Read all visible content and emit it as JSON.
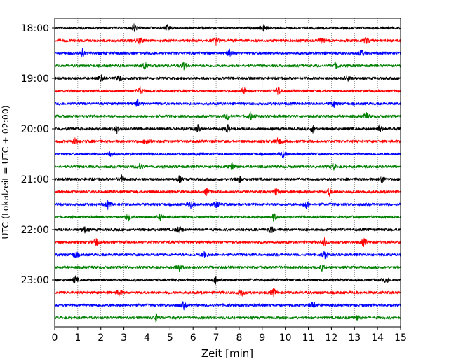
{
  "chart_data": {
    "type": "line",
    "title": "",
    "xlabel": "Zeit  [min]",
    "ylabel": "UTC (Lokalzeit = UTC + 02:00)",
    "xlim": [
      0,
      15
    ],
    "x_ticks": [
      "0",
      "1",
      "2",
      "3",
      "4",
      "5",
      "6",
      "7",
      "8",
      "9",
      "10",
      "11",
      "12",
      "13",
      "14",
      "15"
    ],
    "y_tick_labels": [
      "18:00",
      "19:00",
      "20:00",
      "21:00",
      "22:00",
      "23:00"
    ],
    "grid": "vertical dotted",
    "colors": [
      "#000000",
      "#ff0000",
      "#0000ff",
      "#008000"
    ],
    "traces": [
      {
        "start": "18:00",
        "color": "#000000",
        "events": [
          3.45,
          4.9,
          9.05
        ]
      },
      {
        "start": "18:15",
        "color": "#ff0000",
        "events": [
          3.7,
          7.0,
          11.6,
          13.5
        ]
      },
      {
        "start": "18:30",
        "color": "#0000ff",
        "events": [
          1.2,
          7.6,
          13.3
        ]
      },
      {
        "start": "18:45",
        "color": "#008000",
        "events": [
          3.9,
          5.6,
          12.2
        ]
      },
      {
        "start": "19:00",
        "color": "#000000",
        "events": [
          2.0,
          2.8,
          12.7
        ]
      },
      {
        "start": "19:15",
        "color": "#ff0000",
        "events": [
          3.7,
          8.2,
          9.7
        ]
      },
      {
        "start": "19:30",
        "color": "#0000ff",
        "events": [
          3.6,
          12.1
        ]
      },
      {
        "start": "19:45",
        "color": "#008000",
        "events": [
          7.5,
          8.5,
          13.5
        ]
      },
      {
        "start": "20:00",
        "color": "#000000",
        "events": [
          2.7,
          6.2,
          7.5,
          11.2,
          14.1
        ]
      },
      {
        "start": "20:15",
        "color": "#ff0000",
        "events": [
          0.9,
          4.0,
          9.7
        ]
      },
      {
        "start": "20:30",
        "color": "#0000ff",
        "events": [
          2.4,
          9.9
        ]
      },
      {
        "start": "20:45",
        "color": "#008000",
        "events": [
          3.7,
          7.7,
          12.1
        ]
      },
      {
        "start": "21:00",
        "color": "#000000",
        "events": [
          2.9,
          5.4,
          8.0,
          14.2
        ]
      },
      {
        "start": "21:15",
        "color": "#ff0000",
        "events": [
          6.6,
          9.6,
          11.9
        ]
      },
      {
        "start": "21:30",
        "color": "#0000ff",
        "events": [
          2.3,
          5.9,
          7.0,
          10.9
        ]
      },
      {
        "start": "21:45",
        "color": "#008000",
        "events": [
          3.2,
          4.6,
          9.5
        ]
      },
      {
        "start": "22:00",
        "color": "#000000",
        "events": [
          1.3,
          5.4,
          9.4
        ]
      },
      {
        "start": "22:15",
        "color": "#ff0000",
        "events": [
          1.8,
          11.7,
          13.4
        ]
      },
      {
        "start": "22:30",
        "color": "#0000ff",
        "events": [
          0.9,
          6.5,
          11.7
        ]
      },
      {
        "start": "22:45",
        "color": "#008000",
        "events": [
          5.4,
          11.6
        ]
      },
      {
        "start": "23:00",
        "color": "#000000",
        "events": [
          0.9,
          7.0,
          14.4
        ]
      },
      {
        "start": "23:15",
        "color": "#ff0000",
        "events": [
          2.8,
          8.1,
          9.5
        ]
      },
      {
        "start": "23:30",
        "color": "#0000ff",
        "events": [
          5.6,
          11.2
        ]
      },
      {
        "start": "23:45",
        "color": "#008000",
        "events": [
          4.4,
          13.1
        ]
      }
    ]
  }
}
